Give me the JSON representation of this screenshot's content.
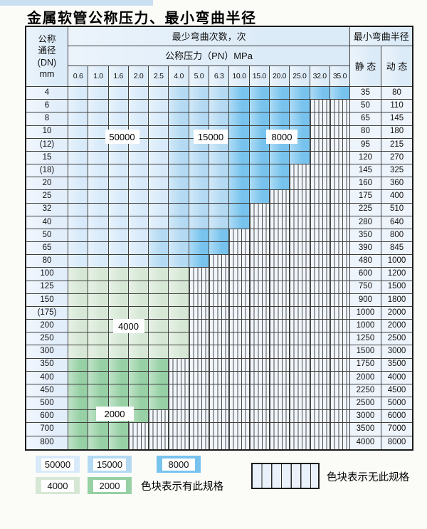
{
  "title": "金属软管公称压力、最小弯曲半径",
  "table": {
    "header": {
      "dn_lines": [
        "公称",
        "通径",
        "(DN)",
        "mm"
      ],
      "bend_cycles": "最少弯曲次数，次",
      "pressure": "公称压力（PN）MPa",
      "ticks": [
        "0.6",
        "1.0",
        "1.6",
        "2.0",
        "2.5",
        "4.0",
        "5.0",
        "6.3",
        "10.0",
        "15.0",
        "20.0",
        "25.0",
        "32.0",
        "35.0"
      ],
      "min_bend_radius": "最小弯曲半径",
      "static": "静 态",
      "dynamic": "动 态"
    },
    "rows": [
      {
        "dn": "4",
        "static": "35",
        "dynamic": "80",
        "zone": "blue",
        "z1": 5,
        "z2": 8,
        "limit": 14
      },
      {
        "dn": "6",
        "static": "50",
        "dynamic": "110",
        "zone": "blue",
        "z1": 5,
        "z2": 8,
        "limit": 12
      },
      {
        "dn": "8",
        "static": "65",
        "dynamic": "145",
        "zone": "blue",
        "z1": 5,
        "z2": 8,
        "limit": 12
      },
      {
        "dn": "10",
        "static": "80",
        "dynamic": "180",
        "zone": "blue",
        "z1": 5,
        "z2": 8,
        "limit": 12
      },
      {
        "dn": "(12)",
        "static": "95",
        "dynamic": "215",
        "zone": "blue",
        "z1": 5,
        "z2": 8,
        "limit": 12
      },
      {
        "dn": "15",
        "static": "120",
        "dynamic": "270",
        "zone": "blue",
        "z1": 5,
        "z2": 8,
        "limit": 12
      },
      {
        "dn": "(18)",
        "static": "145",
        "dynamic": "325",
        "zone": "blue",
        "z1": 5,
        "z2": 8,
        "limit": 11
      },
      {
        "dn": "20",
        "static": "160",
        "dynamic": "360",
        "zone": "blue",
        "z1": 5,
        "z2": 8,
        "limit": 11
      },
      {
        "dn": "25",
        "static": "175",
        "dynamic": "400",
        "zone": "blue",
        "z1": 5,
        "z2": 8,
        "limit": 10
      },
      {
        "dn": "32",
        "static": "225",
        "dynamic": "510",
        "zone": "blue",
        "z1": 5,
        "z2": 8,
        "limit": 9
      },
      {
        "dn": "40",
        "static": "280",
        "dynamic": "640",
        "zone": "blue",
        "z1": 5,
        "z2": 8,
        "limit": 9
      },
      {
        "dn": "50",
        "static": "350",
        "dynamic": "800",
        "zone": "blue",
        "z1": 4,
        "z2": 6,
        "limit": 8
      },
      {
        "dn": "65",
        "static": "390",
        "dynamic": "845",
        "zone": "blue",
        "z1": 4,
        "z2": 6,
        "limit": 8
      },
      {
        "dn": "80",
        "static": "480",
        "dynamic": "1000",
        "zone": "blue",
        "z1": 4,
        "z2": 6,
        "limit": 7
      },
      {
        "dn": "100",
        "static": "600",
        "dynamic": "1200",
        "zone": "g1",
        "limit": 6
      },
      {
        "dn": "125",
        "static": "750",
        "dynamic": "1500",
        "zone": "g1",
        "limit": 6
      },
      {
        "dn": "150",
        "static": "900",
        "dynamic": "1800",
        "zone": "g1",
        "limit": 6
      },
      {
        "dn": "(175)",
        "static": "1000",
        "dynamic": "2000",
        "zone": "g1",
        "limit": 6
      },
      {
        "dn": "200",
        "static": "1000",
        "dynamic": "2000",
        "zone": "g1",
        "limit": 6
      },
      {
        "dn": "250",
        "static": "1250",
        "dynamic": "2500",
        "zone": "g1",
        "limit": 6
      },
      {
        "dn": "300",
        "static": "1500",
        "dynamic": "3000",
        "zone": "g1",
        "limit": 6
      },
      {
        "dn": "350",
        "static": "1750",
        "dynamic": "3500",
        "zone": "g2",
        "limit": 5
      },
      {
        "dn": "400",
        "static": "2000",
        "dynamic": "4000",
        "zone": "g2",
        "limit": 5
      },
      {
        "dn": "450",
        "static": "2250",
        "dynamic": "4500",
        "zone": "g2",
        "limit": 5
      },
      {
        "dn": "500",
        "static": "2500",
        "dynamic": "5000",
        "zone": "g2",
        "limit": 5
      },
      {
        "dn": "600",
        "static": "3000",
        "dynamic": "6000",
        "zone": "g2",
        "limit": 4
      },
      {
        "dn": "700",
        "static": "3500",
        "dynamic": "7000",
        "zone": "g2",
        "limit": 3
      },
      {
        "dn": "800",
        "static": "4000",
        "dynamic": "8000",
        "zone": "g2",
        "limit": 3
      }
    ],
    "region_labels": [
      "50000",
      "15000",
      "8000",
      "4000",
      "2000"
    ]
  },
  "legend": {
    "chips": [
      {
        "label": "50000",
        "color": "#d8eafa"
      },
      {
        "label": "15000",
        "color": "#b4daf3"
      },
      {
        "label": "8000",
        "color": "#77c3ee"
      },
      {
        "label": "4000",
        "color": "#d6e8d5"
      },
      {
        "label": "2000",
        "color": "#96d0a4"
      }
    ],
    "has_spec_text": "色块表示有此规格",
    "no_spec_text": "色块表示无此规格"
  },
  "colors": {
    "cycles_50000": "#d8eafa",
    "cycles_15000": "#b4daf3",
    "cycles_8000": "#77c3ee",
    "cycles_4000": "#d6e8d5",
    "cycles_2000": "#96d0a4",
    "no_spec_stripe_line": "#4b4b4b",
    "header_bg": "#dcebf8",
    "top_strip": "#c9dff2"
  }
}
